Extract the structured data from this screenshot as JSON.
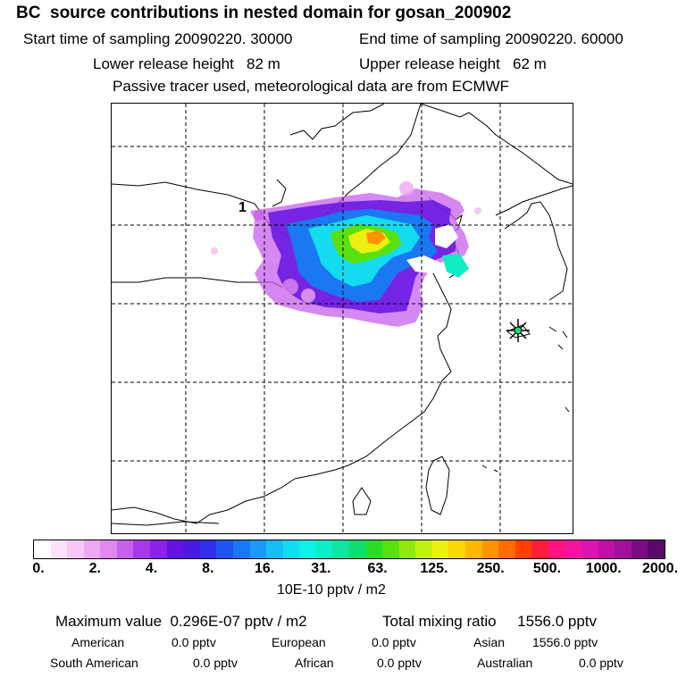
{
  "title": "BC  source contributions in nested domain for gosan_200902",
  "start_time": "Start time of sampling 20090220. 30000",
  "end_time": "End time of sampling 20090220. 60000",
  "lower_height": "Lower release height   82 m",
  "upper_height": "Upper release height   62 m",
  "tracer_note": "Passive tracer used, meteorological data are from ECMWF",
  "map_label": "1",
  "colorbar": {
    "ticks": [
      "0.",
      "2.",
      "4.",
      "8.",
      "16.",
      "31.",
      "63.",
      "125.",
      "250.",
      "500.",
      "1000.",
      "2000."
    ],
    "units": "10E-10 pptv / m2",
    "colors": [
      "#ffffff",
      "#fbe3fb",
      "#f5c8f5",
      "#efa8f3",
      "#e088f0",
      "#c860ee",
      "#a838ea",
      "#8a22e8",
      "#6414e0",
      "#4a1ae0",
      "#3030e8",
      "#1e54ee",
      "#1a78f2",
      "#1a9af4",
      "#18bcf4",
      "#14dcf0",
      "#10f0e4",
      "#10ecc4",
      "#10e4a0",
      "#10dc70",
      "#28dc28",
      "#58e010",
      "#90e810",
      "#c0f010",
      "#ecf010",
      "#ffd800",
      "#ffb800",
      "#ff9400",
      "#ff6c00",
      "#ff4000",
      "#ff1c3c",
      "#ff1480",
      "#f414a4",
      "#dc14b0",
      "#c010a8",
      "#a0109c",
      "#7c0c84",
      "#5a086a"
    ]
  },
  "stats": {
    "max_value": "Maximum value  0.296E-07 pptv / m2",
    "total_mixing": "Total mixing ratio     1556.0 pptv",
    "american_label": "American",
    "american_value": "0.0 pptv",
    "european_label": "European",
    "european_value": "0.0 pptv",
    "asian_label": "Asian",
    "asian_value": "1556.0 pptv",
    "south_american_label": "South American",
    "south_american_value": "0.0 pptv",
    "african_label": "African",
    "african_value": "0.0 pptv",
    "australian_label": "Australian",
    "australian_value": "0.0 pptv"
  }
}
